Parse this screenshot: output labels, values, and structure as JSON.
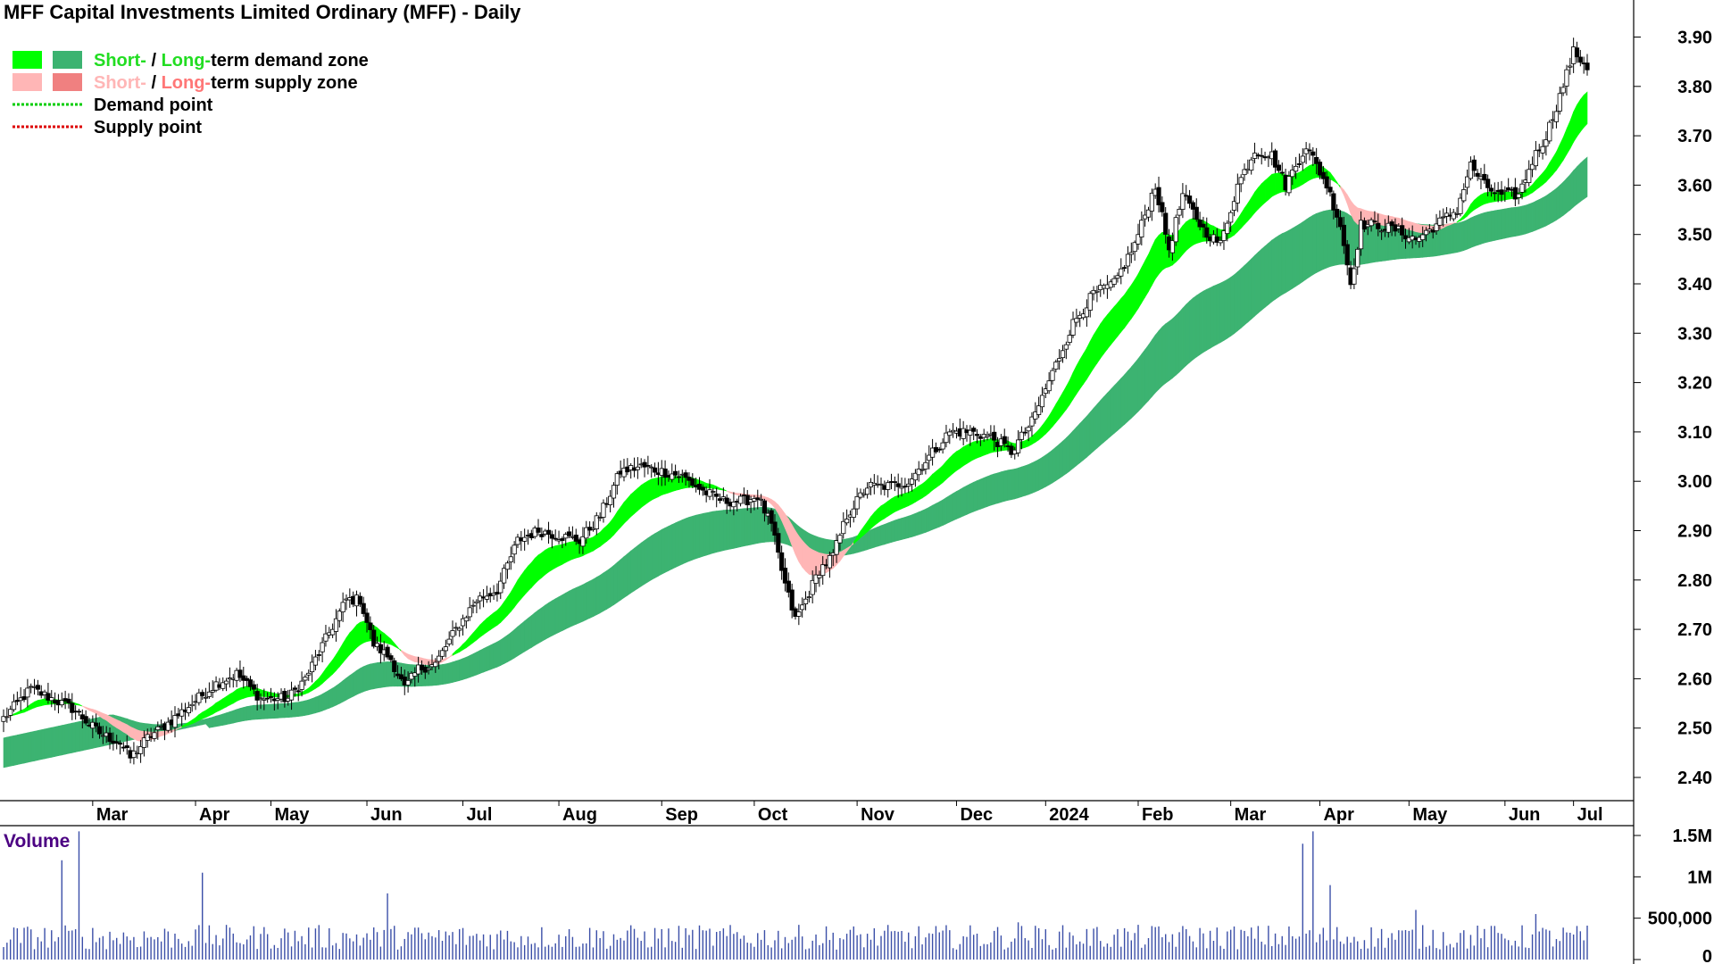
{
  "chart_data": [
    {
      "type": "candlestick",
      "title": "MFF Capital Investments Limited Ordinary (MFF) - Daily",
      "legend": [
        {
          "parts": [
            {
              "text": "Short-",
              "color": "#22dd22"
            },
            {
              "text": " / ",
              "color": "#000000"
            },
            {
              "text": "Long-",
              "color": "#22dd22"
            },
            {
              "text": "term demand zone",
              "color": "#000000"
            }
          ],
          "swatches": [
            "#00ff00",
            "#3cb371"
          ],
          "kind": "box"
        },
        {
          "parts": [
            {
              "text": "Short-",
              "color": "#ffb6b6"
            },
            {
              "text": " / ",
              "color": "#000000"
            },
            {
              "text": "Long-",
              "color": "#ff7777"
            },
            {
              "text": "term supply zone",
              "color": "#000000"
            }
          ],
          "swatches": [
            "#ffb6b6",
            "#f08080"
          ],
          "kind": "box"
        },
        {
          "parts": [
            {
              "text": "Demand point",
              "color": "#000000"
            }
          ],
          "swatches": [
            "#00cc00"
          ],
          "kind": "dots"
        },
        {
          "parts": [
            {
              "text": "Supply point",
              "color": "#000000"
            }
          ],
          "swatches": [
            "#dd0000"
          ],
          "kind": "dots"
        }
      ],
      "legend_position": "top-left",
      "y_axis_position": "right",
      "ylim": [
        2.38,
        3.94
      ],
      "y_ticks": [
        "2.40",
        "2.50",
        "2.60",
        "2.70",
        "2.80",
        "2.90",
        "3.00",
        "3.10",
        "3.20",
        "3.30",
        "3.40",
        "3.50",
        "3.60",
        "3.70",
        "3.80",
        "3.90"
      ],
      "x_labels": [
        "Mar",
        "Apr",
        "May",
        "Jun",
        "Jul",
        "Aug",
        "Sep",
        "Oct",
        "Nov",
        "Dec",
        "2024",
        "Feb",
        "Mar",
        "Apr",
        "May",
        "Jun",
        "Jul"
      ],
      "close_anchors": [
        [
          0,
          2.52
        ],
        [
          8,
          2.58
        ],
        [
          20,
          2.54
        ],
        [
          28,
          2.49
        ],
        [
          34,
          2.47
        ],
        [
          37,
          2.44
        ],
        [
          42,
          2.48
        ],
        [
          48,
          2.51
        ],
        [
          55,
          2.55
        ],
        [
          62,
          2.59
        ],
        [
          68,
          2.61
        ],
        [
          75,
          2.56
        ],
        [
          83,
          2.56
        ],
        [
          88,
          2.6
        ],
        [
          94,
          2.68
        ],
        [
          100,
          2.76
        ],
        [
          104,
          2.76
        ],
        [
          108,
          2.67
        ],
        [
          113,
          2.64
        ],
        [
          117,
          2.58
        ],
        [
          121,
          2.62
        ],
        [
          126,
          2.63
        ],
        [
          132,
          2.7
        ],
        [
          138,
          2.76
        ],
        [
          144,
          2.78
        ],
        [
          150,
          2.88
        ],
        [
          156,
          2.9
        ],
        [
          162,
          2.89
        ],
        [
          168,
          2.88
        ],
        [
          174,
          2.93
        ],
        [
          180,
          3.02
        ],
        [
          186,
          3.03
        ],
        [
          192,
          3.02
        ],
        [
          198,
          3.01
        ],
        [
          204,
          2.98
        ],
        [
          210,
          2.96
        ],
        [
          216,
          2.96
        ],
        [
          220,
          2.97
        ],
        [
          224,
          2.91
        ],
        [
          228,
          2.79
        ],
        [
          231,
          2.72
        ],
        [
          234,
          2.76
        ],
        [
          238,
          2.82
        ],
        [
          242,
          2.85
        ],
        [
          246,
          2.93
        ],
        [
          252,
          2.99
        ],
        [
          258,
          2.99
        ],
        [
          264,
          3.0
        ],
        [
          270,
          3.05
        ],
        [
          276,
          3.1
        ],
        [
          282,
          3.1
        ],
        [
          288,
          3.09
        ],
        [
          294,
          3.06
        ],
        [
          300,
          3.12
        ],
        [
          306,
          3.22
        ],
        [
          312,
          3.32
        ],
        [
          318,
          3.38
        ],
        [
          324,
          3.4
        ],
        [
          330,
          3.48
        ],
        [
          336,
          3.6
        ],
        [
          340,
          3.47
        ],
        [
          344,
          3.58
        ],
        [
          350,
          3.51
        ],
        [
          355,
          3.48
        ],
        [
          360,
          3.6
        ],
        [
          365,
          3.67
        ],
        [
          370,
          3.66
        ],
        [
          374,
          3.6
        ],
        [
          380,
          3.68
        ],
        [
          386,
          3.6
        ],
        [
          390,
          3.52
        ],
        [
          393,
          3.4
        ],
        [
          396,
          3.52
        ],
        [
          400,
          3.52
        ],
        [
          406,
          3.51
        ],
        [
          412,
          3.49
        ],
        [
          418,
          3.52
        ],
        [
          424,
          3.55
        ],
        [
          428,
          3.64
        ],
        [
          432,
          3.6
        ],
        [
          436,
          3.58
        ],
        [
          442,
          3.58
        ],
        [
          446,
          3.65
        ],
        [
          450,
          3.7
        ],
        [
          454,
          3.78
        ],
        [
          458,
          3.87
        ],
        [
          462,
          3.84
        ]
      ],
      "volume": {
        "title": "Volume",
        "title_color": "#4b0082",
        "bar_color": "#3b4fa8",
        "ylim": [
          0,
          1600000
        ],
        "y_ticks": [
          "0",
          "500,000",
          "1M",
          "1.5M"
        ],
        "spikes": [
          [
            17,
            1200000
          ],
          [
            22,
            1550000
          ],
          [
            58,
            1050000
          ],
          [
            112,
            800000
          ],
          [
            296,
            450000
          ],
          [
            379,
            1400000
          ],
          [
            382,
            1550000
          ],
          [
            387,
            900000
          ],
          [
            412,
            600000
          ],
          [
            447,
            550000
          ]
        ]
      }
    }
  ]
}
